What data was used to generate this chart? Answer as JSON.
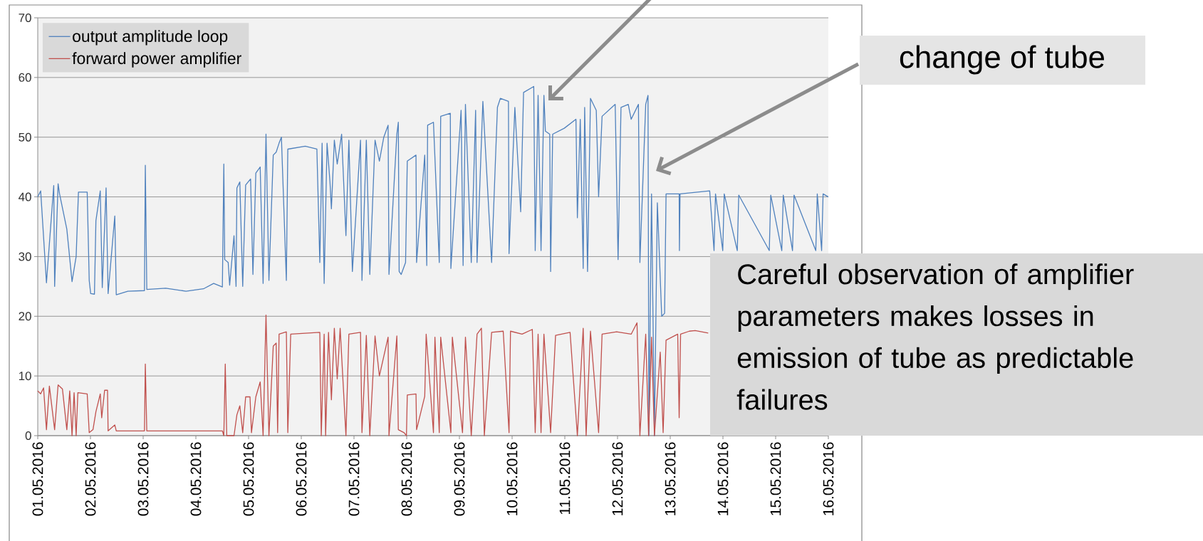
{
  "chart_data": {
    "type": "line",
    "xlim": [
      "2016-05-01",
      "2016-05-16"
    ],
    "xticks": [
      {
        "value": "2016-05-01",
        "label": "01.05.2016"
      },
      {
        "value": "2016-05-02",
        "label": "02.05.2016"
      },
      {
        "value": "2016-05-03",
        "label": "03.05.2016"
      },
      {
        "value": "2016-05-04",
        "label": "04.05.2016"
      },
      {
        "value": "2016-05-05",
        "label": "05.05.2016"
      },
      {
        "value": "2016-05-06",
        "label": "06.05.2016"
      },
      {
        "value": "2016-05-07",
        "label": "07.05.2016"
      },
      {
        "value": "2016-05-08",
        "label": "08.05.2016"
      },
      {
        "value": "2016-05-09",
        "label": "09.05.2016"
      },
      {
        "value": "2016-05-10",
        "label": "10.05.2016"
      },
      {
        "value": "2016-05-11",
        "label": "11.05.2016"
      },
      {
        "value": "2016-05-12",
        "label": "12.05.2016"
      },
      {
        "value": "2016-05-13",
        "label": "13.05.2016"
      },
      {
        "value": "2016-05-14",
        "label": "14.05.2016"
      },
      {
        "value": "2016-05-15",
        "label": "15.05.2016"
      },
      {
        "value": "2016-05-16",
        "label": "16.05.2016"
      }
    ],
    "ylim": [
      0,
      70
    ],
    "yticks": [
      0,
      10,
      20,
      30,
      40,
      50,
      60,
      70
    ],
    "grid": "y",
    "legend": "top left",
    "series": [
      {
        "name": "output amplitude loop",
        "color": "#4f81bd",
        "x": [
          "2016-05-01T00:00",
          "2016-05-01T01:20",
          "2016-05-01T03:58",
          "2016-05-01T07:17",
          "2016-05-01T07:41",
          "2016-05-01T09:16",
          "2016-05-01T09:56",
          "2016-05-01T13:14",
          "2016-05-01T15:37",
          "2016-05-01T17:29",
          "2016-05-01T18:32",
          "2016-05-01T22:31",
          "2016-05-01T23:26",
          "2016-05-02T00:06",
          "2016-05-02T01:49",
          "2016-05-02T02:29",
          "2016-05-02T04:28",
          "2016-05-02T05:23",
          "2016-05-02T07:07",
          "2016-05-02T08:02",
          "2016-05-02T11:05",
          "2016-05-02T11:45",
          "2016-05-02T17:02",
          "2016-05-03T00:35",
          "2016-05-03T00:59",
          "2016-05-03T01:39",
          "2016-05-03T10:16",
          "2016-05-03T19:31",
          "2016-05-04T03:28",
          "2016-05-04T08:06",
          "2016-05-04T12:04",
          "2016-05-04T12:44",
          "2016-05-04T13:08",
          "2016-05-04T14:43",
          "2016-05-04T15:23",
          "2016-05-04T17:22",
          "2016-05-04T18:18",
          "2016-05-04T18:41",
          "2016-05-04T20:01",
          "2016-05-04T21:20",
          "2016-05-04T22:40",
          "2016-05-05T00:55",
          "2016-05-05T01:59",
          "2016-05-05T03:18",
          "2016-05-05T05:17",
          "2016-05-05T06:37",
          "2016-05-05T07:56",
          "2016-05-05T09:16",
          "2016-05-05T11:14",
          "2016-05-05T12:34",
          "2016-05-05T13:53",
          "2016-05-05T14:57",
          "2016-05-05T17:12",
          "2016-05-05T17:52",
          "2016-05-06T01:49",
          "2016-05-06T07:06",
          "2016-05-06T08:26",
          "2016-05-06T09:29",
          "2016-05-06T10:25",
          "2016-05-06T11:44",
          "2016-05-06T13:04",
          "2016-05-06T13:43",
          "2016-05-06T15:03",
          "2016-05-06T16:22",
          "2016-05-06T18:22",
          "2016-05-06T20:20",
          "2016-05-06T21:40",
          "2016-05-06T23:16",
          "2016-05-07T02:58",
          "2016-05-07T03:38",
          "2016-05-07T05:37",
          "2016-05-07T07:12",
          "2016-05-07T09:35",
          "2016-05-07T11:34",
          "2016-05-07T13:34",
          "2016-05-07T15:32",
          "2016-05-07T15:56",
          "2016-05-07T19:31",
          "2016-05-07T20:11",
          "2016-05-07T20:34",
          "2016-05-07T21:30",
          "2016-05-07T23:29",
          "2016-05-08T00:16",
          "2016-05-08T04:14",
          "2016-05-08T04:30",
          "2016-05-08T08:13",
          "2016-05-08T09:08",
          "2016-05-08T09:32",
          "2016-05-08T12:11",
          "2016-05-08T14:50",
          "2016-05-08T15:29",
          "2016-05-08T19:52",
          "2016-05-08T20:07",
          "2016-05-09T00:46",
          "2016-05-09T01:41",
          "2016-05-09T02:45",
          "2016-05-09T05:24",
          "2016-05-09T07:23",
          "2016-05-09T08:02",
          "2016-05-09T10:41",
          "2016-05-09T14:40",
          "2016-05-09T17:19",
          "2016-05-09T18:38",
          "2016-05-09T22:20",
          "2016-05-09T22:36",
          "2016-05-10T01:15",
          "2016-05-10T03:54",
          "2016-05-10T05:13",
          "2016-05-10T09:51",
          "2016-05-10T10:31",
          "2016-05-10T11:50",
          "2016-05-10T13:10",
          "2016-05-10T14:29",
          "2016-05-10T15:09",
          "2016-05-10T17:08",
          "2016-05-10T17:32",
          "2016-05-10T18:28",
          "2016-05-10T23:46",
          "2016-05-11T05:04",
          "2016-05-11T05:43",
          "2016-05-11T07:02",
          "2016-05-11T08:22",
          "2016-05-11T09:02",
          "2016-05-11T10:21",
          "2016-05-11T11:41",
          "2016-05-11T14:19",
          "2016-05-11T15:23",
          "2016-05-11T16:58",
          "2016-05-11T22:56",
          "2016-05-12T00:15",
          "2016-05-12T01:35",
          "2016-05-12T04:53",
          "2016-05-12T06:13",
          "2016-05-12T09:31",
          "2016-05-12T10:11",
          "2016-05-12T12:50",
          "2016-05-12T13:53",
          "2016-05-12T14:17",
          "2016-05-12T15:29",
          "2016-05-12T16:48",
          "2016-05-12T18:08",
          "2016-05-12T20:07",
          "2016-05-12T21:26",
          "2016-05-12T22:06",
          "2016-05-13T04:04",
          "2016-05-13T04:11",
          "2016-05-13T04:28",
          "2016-05-13T17:58",
          "2016-05-13T19:57",
          "2016-05-13T20:37",
          "2016-05-13T23:55",
          "2016-05-14T00:35",
          "2016-05-14T06:32",
          "2016-05-14T07:12",
          "2016-05-14T21:06",
          "2016-05-14T21:46",
          "2016-05-15T02:48",
          "2016-05-15T03:28",
          "2016-05-15T07:41",
          "2016-05-15T08:22",
          "2016-05-15T18:17",
          "2016-05-15T18:57",
          "2016-05-15T20:56",
          "2016-05-15T21:36",
          "2016-05-16T00:00"
        ],
        "values": [
          40,
          41,
          25.6,
          41.9,
          25,
          42.2,
          40.5,
          34.6,
          25.8,
          30,
          40.8,
          40.8,
          26,
          23.8,
          23.7,
          36,
          41,
          24.8,
          41.5,
          23.8,
          36.8,
          23.6,
          24.2,
          24.3,
          45.3,
          24.5,
          24.7,
          24.2,
          24.6,
          25.5,
          24.9,
          45.5,
          29.5,
          29,
          25.2,
          33.5,
          25,
          41.5,
          42.5,
          25,
          42,
          43,
          27,
          44,
          45,
          25.5,
          50.5,
          26,
          47,
          47.5,
          49,
          50,
          26,
          48,
          48.5,
          48,
          29,
          49,
          25.5,
          49,
          42.5,
          38,
          49.5,
          45.5,
          50.5,
          33.5,
          49.5,
          27.5,
          49.5,
          26,
          49.5,
          27,
          49.5,
          46,
          50,
          52,
          27,
          50.5,
          52.5,
          27.5,
          27,
          29,
          46,
          47,
          29,
          47,
          28.5,
          52,
          52.5,
          29,
          53.5,
          54,
          28,
          54.5,
          28.5,
          55.5,
          29,
          54.5,
          29,
          56,
          29,
          55,
          56.5,
          56,
          30.5,
          55,
          37.5,
          57.5,
          58.5,
          31,
          57,
          31,
          57,
          51,
          50.5,
          27.5,
          50.5,
          51.5,
          53,
          36.5,
          53,
          28,
          55,
          27.5,
          56.5,
          54.5,
          40,
          53.5,
          55.5,
          29.5,
          55,
          55.5,
          53,
          55.5,
          29,
          55.5,
          57,
          0,
          40.5,
          0,
          39,
          20,
          20.5,
          40.5,
          40.5,
          31,
          40.5,
          41,
          31,
          40.5,
          31,
          40.5,
          31,
          40.3,
          31,
          40.3,
          31,
          40.3,
          31,
          40.3,
          31,
          40.5,
          31,
          40.5,
          40
        ]
      },
      {
        "name": "forward power amplifier",
        "color": "#c0504d",
        "x": [
          "2016-05-01T00:00",
          "2016-05-01T01:19",
          "2016-05-01T02:39",
          "2016-05-01T03:58",
          "2016-05-01T05:18",
          "2016-05-01T07:41",
          "2016-05-01T09:16",
          "2016-05-01T11:15",
          "2016-05-01T13:14",
          "2016-05-01T14:34",
          "2016-05-01T15:37",
          "2016-05-01T16:33",
          "2016-05-01T17:29",
          "2016-05-01T18:16",
          "2016-05-01T22:31",
          "2016-05-01T23:26",
          "2016-05-02T01:09",
          "2016-05-02T02:29",
          "2016-05-02T04:28",
          "2016-05-02T05:07",
          "2016-05-02T06:27",
          "2016-05-02T07:46",
          "2016-05-02T08:02",
          "2016-05-02T11:05",
          "2016-05-02T11:45",
          "2016-05-03T00:35",
          "2016-05-03T00:59",
          "2016-05-03T01:39",
          "2016-05-04T03:28",
          "2016-05-04T12:04",
          "2016-05-04T12:44",
          "2016-05-04T13:23",
          "2016-05-04T14:03",
          "2016-05-04T17:22",
          "2016-05-04T18:41",
          "2016-05-04T20:01",
          "2016-05-04T21:20",
          "2016-05-04T22:40",
          "2016-05-05T00:39",
          "2016-05-05T01:19",
          "2016-05-05T03:18",
          "2016-05-05T05:17",
          "2016-05-05T06:37",
          "2016-05-05T07:56",
          "2016-05-05T09:16",
          "2016-05-05T11:14",
          "2016-05-05T12:34",
          "2016-05-05T13:14",
          "2016-05-05T13:53",
          "2016-05-05T17:12",
          "2016-05-05T17:52",
          "2016-05-05T19:11",
          "2016-05-06T08:26",
          "2016-05-06T09:06",
          "2016-05-06T10:25",
          "2016-05-06T11:05",
          "2016-05-06T12:24",
          "2016-05-06T13:43",
          "2016-05-06T15:03",
          "2016-05-06T16:22",
          "2016-05-06T17:42",
          "2016-05-06T20:20",
          "2016-05-06T21:40",
          "2016-05-07T02:58",
          "2016-05-07T03:38",
          "2016-05-07T05:37",
          "2016-05-07T07:12",
          "2016-05-07T09:35",
          "2016-05-07T11:34",
          "2016-05-07T15:32",
          "2016-05-07T15:56",
          "2016-05-07T19:31",
          "2016-05-07T20:11",
          "2016-05-07T22:50",
          "2016-05-07T23:53",
          "2016-05-08T00:16",
          "2016-05-08T04:14",
          "2016-05-08T04:30",
          "2016-05-08T08:13",
          "2016-05-08T08:52",
          "2016-05-08T12:11",
          "2016-05-08T12:51",
          "2016-05-08T14:50",
          "2016-05-08T15:29",
          "2016-05-08T20:07",
          "2016-05-08T20:47",
          "2016-05-09T01:25",
          "2016-05-09T02:45",
          "2016-05-09T05:24",
          "2016-05-09T08:02",
          "2016-05-09T10:01",
          "2016-05-09T11:21",
          "2016-05-09T14:40",
          "2016-05-09T19:57",
          "2016-05-09T22:36",
          "2016-05-09T23:16",
          "2016-05-10T04:33",
          "2016-05-10T09:12",
          "2016-05-10T10:31",
          "2016-05-10T11:50",
          "2016-05-10T13:10",
          "2016-05-10T14:29",
          "2016-05-10T17:32",
          "2016-05-10T19:47",
          "2016-05-11T02:24",
          "2016-05-11T05:43",
          "2016-05-11T08:22",
          "2016-05-11T09:42",
          "2016-05-11T11:41",
          "2016-05-11T15:23",
          "2016-05-11T16:58",
          "2016-05-11T23:35",
          "2016-05-12T06:13",
          "2016-05-12T08:52",
          "2016-05-12T10:11",
          "2016-05-12T12:50",
          "2016-05-12T14:09",
          "2016-05-12T15:29",
          "2016-05-12T16:48",
          "2016-05-12T19:27",
          "2016-05-12T20:46",
          "2016-05-12T22:06",
          "2016-05-13T03:24",
          "2016-05-13T04:04",
          "2016-05-13T04:43",
          "2016-05-13T08:42",
          "2016-05-13T11:21",
          "2016-05-13T17:18"
        ],
        "values": [
          7.5,
          7,
          8,
          1,
          8.3,
          1,
          8.5,
          7.8,
          1,
          7.5,
          0,
          7.2,
          0,
          7.2,
          7,
          0.5,
          1,
          4,
          7,
          3,
          7.6,
          7.6,
          0.8,
          1.8,
          0.8,
          0.8,
          12,
          0.8,
          0.8,
          0.8,
          0,
          12,
          0,
          0,
          3.5,
          5,
          0.5,
          6.5,
          6.5,
          0.5,
          6.5,
          9,
          0,
          20.2,
          0,
          15,
          15.5,
          0.5,
          17,
          17.4,
          0.5,
          17,
          17.3,
          0,
          17,
          0,
          17.3,
          6,
          18,
          9.5,
          18,
          0,
          17,
          17.3,
          0.5,
          16.8,
          0,
          16.7,
          10,
          16.5,
          0,
          16.7,
          1,
          0.5,
          0,
          6.8,
          7,
          1,
          6.6,
          17,
          0.5,
          16.5,
          0.5,
          16.5,
          0.5,
          16.5,
          0.5,
          16.5,
          0,
          17,
          18,
          0,
          17.3,
          17.5,
          0.5,
          17.5,
          17,
          17.8,
          0.5,
          17,
          0.5,
          17,
          0.5,
          16.8,
          17.3,
          0,
          18,
          0,
          17.5,
          0.5,
          17,
          17.4,
          17,
          18.9,
          0,
          17,
          0,
          16.5,
          0,
          14,
          0.5,
          16,
          17,
          3,
          17,
          17.5,
          17.6,
          17.2
        ]
      }
    ],
    "annotations": [
      "change of tube",
      "Careful observation of amplifier parameters makes losses in emission of tube as predictable failures"
    ]
  }
}
